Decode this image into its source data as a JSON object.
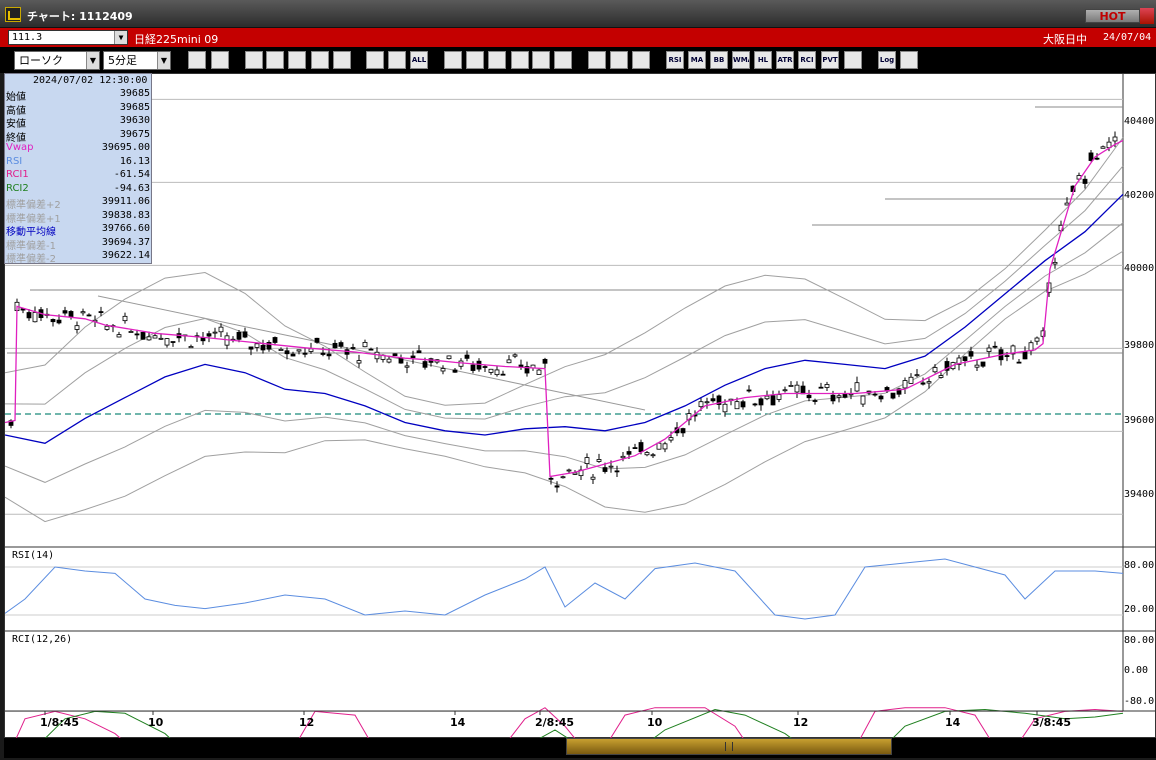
{
  "window": {
    "title": "チャート: 1112409",
    "hot_label": "HOT"
  },
  "infobar": {
    "symbol_code": "111.3",
    "symbol_name": "日経225mini 09",
    "market": "大阪日中",
    "date": "24/07/04"
  },
  "toolbar": {
    "chart_type": "ローソク",
    "interval": "5分足",
    "buttons": [
      "search-icon",
      "ruler-icon",
      "zoom-icon",
      "zoom-out-icon",
      "chart-icon",
      "arrows-icon",
      "blank-icon",
      "candle-icon",
      "candle2-icon",
      "ALL",
      "line-icon",
      "trend-icon",
      "cursor-icon",
      "curve-icon",
      "list-icon",
      "trash-icon",
      "grid-icon",
      "tool-icon",
      "color-icon",
      "RSI",
      "MA",
      "BB",
      "WMA",
      "HL",
      "ATR",
      "RCI",
      "PVT",
      "frame-icon",
      "Log",
      "export-icon"
    ]
  },
  "data_panel": {
    "datetime": "2024/07/02  12:30:00",
    "rows": [
      {
        "label": "始値",
        "value": "39685",
        "color": "#000000"
      },
      {
        "label": "高値",
        "value": "39685",
        "color": "#000000"
      },
      {
        "label": "安値",
        "value": "39630",
        "color": "#000000"
      },
      {
        "label": "終値",
        "value": "39675",
        "color": "#000000"
      },
      {
        "label": "Vwap",
        "value": "39695.00",
        "color": "#e020c0"
      },
      {
        "label": "RSI",
        "value": "16.13",
        "color": "#5b8de0"
      },
      {
        "label": "RCI1",
        "value": "-61.54",
        "color": "#e0208c"
      },
      {
        "label": "RCI2",
        "value": "-94.63",
        "color": "#208020"
      },
      {
        "label": "標準偏差+2",
        "value": "39911.06",
        "color": "#a0a0a0"
      },
      {
        "label": "標準偏差+1",
        "value": "39838.83",
        "color": "#a0a0a0"
      },
      {
        "label": "移動平均線",
        "value": "39766.60",
        "color": "#0000c0"
      },
      {
        "label": "標準偏差-1",
        "value": "39694.37",
        "color": "#a0a0a0"
      },
      {
        "label": "標準偏差-2",
        "value": "39622.14",
        "color": "#a0a0a0"
      }
    ]
  },
  "price_axis": {
    "labels": [
      "40400",
      "40200",
      "40000",
      "39800",
      "39600",
      "39400"
    ],
    "values": [
      40400,
      40200,
      40000,
      39800,
      39600,
      39400
    ]
  },
  "rsi_panel": {
    "label": "RSI(14)",
    "ticks": [
      "80.00",
      "20.00"
    ]
  },
  "rci_panel": {
    "label": "RCI(12,26)",
    "ticks": [
      "80.00",
      "0.00",
      "-80.0"
    ]
  },
  "time_axis": {
    "labels": [
      "1/8:45",
      "10",
      "12",
      "14",
      "2/8:45",
      "10",
      "12",
      "14",
      "3/8:45"
    ]
  },
  "colors": {
    "vwap": "#e020c0",
    "ma": "#0000c0",
    "bb": "#a0a0a0",
    "rsi": "#5b8de0",
    "rci1": "#e0208c",
    "rci2": "#208020",
    "dash_line": "#1a8a7a"
  },
  "chart_data": {
    "type": "line",
    "ylim": [
      39320,
      40460
    ],
    "series": [
      {
        "name": "Vwap",
        "points": [
          [
            0,
            39620
          ],
          [
            10,
            39625
          ],
          [
            12,
            39900
          ],
          [
            40,
            39880
          ],
          [
            60,
            39875
          ],
          [
            80,
            39870
          ],
          [
            100,
            39855
          ],
          [
            150,
            39835
          ],
          [
            200,
            39825
          ],
          [
            300,
            39800
          ],
          [
            350,
            39790
          ],
          [
            400,
            39775
          ],
          [
            430,
            39770
          ],
          [
            450,
            39765
          ],
          [
            500,
            39755
          ],
          [
            540,
            39750
          ],
          [
            545,
            39490
          ],
          [
            570,
            39500
          ],
          [
            600,
            39520
          ],
          [
            630,
            39540
          ],
          [
            660,
            39580
          ],
          [
            700,
            39660
          ],
          [
            740,
            39680
          ],
          [
            780,
            39690
          ],
          [
            820,
            39690
          ],
          [
            850,
            39690
          ],
          [
            900,
            39700
          ],
          [
            950,
            39760
          ],
          [
            1000,
            39785
          ],
          [
            1030,
            39795
          ],
          [
            1038,
            39810
          ],
          [
            1045,
            39990
          ],
          [
            1070,
            40190
          ],
          [
            1090,
            40260
          ],
          [
            1110,
            40290
          ],
          [
            1118,
            40300
          ]
        ]
      },
      {
        "name": "MA",
        "points": [
          [
            0,
            39590
          ],
          [
            40,
            39570
          ],
          [
            80,
            39630
          ],
          [
            120,
            39680
          ],
          [
            160,
            39730
          ],
          [
            200,
            39760
          ],
          [
            240,
            39740
          ],
          [
            280,
            39700
          ],
          [
            320,
            39690
          ],
          [
            360,
            39660
          ],
          [
            400,
            39620
          ],
          [
            440,
            39600
          ],
          [
            480,
            39590
          ],
          [
            520,
            39605
          ],
          [
            560,
            39610
          ],
          [
            600,
            39600
          ],
          [
            640,
            39620
          ],
          [
            680,
            39660
          ],
          [
            720,
            39710
          ],
          [
            760,
            39750
          ],
          [
            800,
            39770
          ],
          [
            840,
            39760
          ],
          [
            880,
            39750
          ],
          [
            920,
            39780
          ],
          [
            960,
            39850
          ],
          [
            1000,
            39930
          ],
          [
            1040,
            40010
          ],
          [
            1080,
            40080
          ],
          [
            1118,
            40170
          ]
        ]
      },
      {
        "name": "RSI",
        "points": [
          [
            0,
            22
          ],
          [
            20,
            40
          ],
          [
            50,
            80
          ],
          [
            80,
            75
          ],
          [
            110,
            72
          ],
          [
            140,
            40
          ],
          [
            170,
            32
          ],
          [
            200,
            28
          ],
          [
            240,
            35
          ],
          [
            280,
            45
          ],
          [
            320,
            40
          ],
          [
            360,
            20
          ],
          [
            400,
            25
          ],
          [
            440,
            20
          ],
          [
            480,
            45
          ],
          [
            520,
            65
          ],
          [
            540,
            80
          ],
          [
            560,
            30
          ],
          [
            590,
            60
          ],
          [
            620,
            40
          ],
          [
            650,
            78
          ],
          [
            690,
            85
          ],
          [
            730,
            75
          ],
          [
            770,
            20
          ],
          [
            800,
            15
          ],
          [
            830,
            20
          ],
          [
            860,
            80
          ],
          [
            900,
            85
          ],
          [
            940,
            90
          ],
          [
            970,
            80
          ],
          [
            1000,
            70
          ],
          [
            1020,
            40
          ],
          [
            1050,
            75
          ],
          [
            1090,
            75
          ],
          [
            1118,
            72
          ]
        ]
      },
      {
        "name": "RCI1",
        "points": [
          [
            0,
            -60
          ],
          [
            20,
            60
          ],
          [
            50,
            80
          ],
          [
            80,
            60
          ],
          [
            110,
            20
          ],
          [
            140,
            -50
          ],
          [
            170,
            -90
          ],
          [
            200,
            -85
          ],
          [
            240,
            -50
          ],
          [
            280,
            -60
          ],
          [
            310,
            80
          ],
          [
            350,
            70
          ],
          [
            380,
            -70
          ],
          [
            410,
            -80
          ],
          [
            440,
            -90
          ],
          [
            480,
            -80
          ],
          [
            520,
            60
          ],
          [
            540,
            90
          ],
          [
            560,
            40
          ],
          [
            590,
            -60
          ],
          [
            620,
            70
          ],
          [
            650,
            90
          ],
          [
            700,
            90
          ],
          [
            730,
            40
          ],
          [
            760,
            -80
          ],
          [
            800,
            -85
          ],
          [
            840,
            -70
          ],
          [
            870,
            80
          ],
          [
            900,
            90
          ],
          [
            940,
            90
          ],
          [
            970,
            70
          ],
          [
            1000,
            -60
          ],
          [
            1030,
            60
          ],
          [
            1060,
            80
          ],
          [
            1090,
            85
          ],
          [
            1118,
            80
          ]
        ]
      },
      {
        "name": "RCI2",
        "points": [
          [
            0,
            -90
          ],
          [
            30,
            -20
          ],
          [
            60,
            60
          ],
          [
            90,
            80
          ],
          [
            120,
            75
          ],
          [
            160,
            20
          ],
          [
            200,
            -80
          ],
          [
            240,
            -90
          ],
          [
            280,
            -80
          ],
          [
            320,
            -50
          ],
          [
            350,
            -40
          ],
          [
            380,
            -50
          ],
          [
            420,
            -80
          ],
          [
            460,
            -90
          ],
          [
            500,
            -70
          ],
          [
            530,
            0
          ],
          [
            550,
            30
          ],
          [
            590,
            -40
          ],
          [
            620,
            -50
          ],
          [
            660,
            30
          ],
          [
            710,
            85
          ],
          [
            740,
            70
          ],
          [
            780,
            20
          ],
          [
            810,
            -40
          ],
          [
            850,
            -80
          ],
          [
            870,
            -40
          ],
          [
            900,
            40
          ],
          [
            940,
            80
          ],
          [
            980,
            85
          ],
          [
            1020,
            75
          ],
          [
            1060,
            60
          ],
          [
            1090,
            65
          ],
          [
            1118,
            75
          ]
        ]
      }
    ]
  }
}
